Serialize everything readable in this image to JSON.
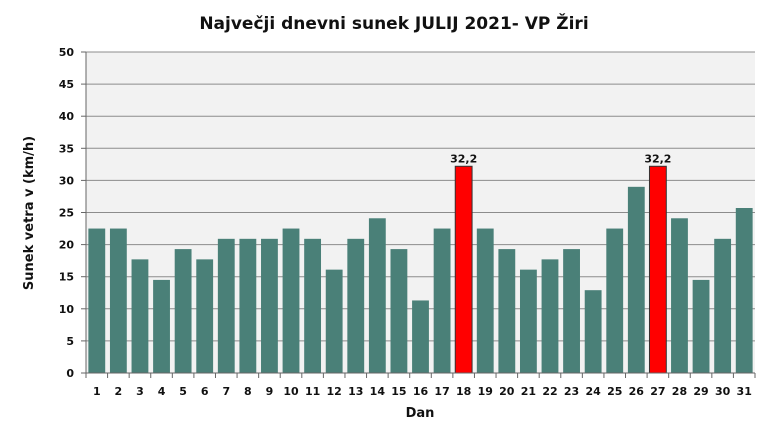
{
  "chart_data": {
    "type": "bar",
    "title": "Največji dnevni sunek JULIJ 2021- VP Žiri",
    "xlabel": "Dan",
    "ylabel": "Sunek vetra  v (km/h)",
    "ylim": [
      0,
      50
    ],
    "yticks": [
      0,
      5,
      10,
      15,
      20,
      25,
      30,
      35,
      40,
      45,
      50
    ],
    "grid": true,
    "categories": [
      "1",
      "2",
      "3",
      "4",
      "5",
      "6",
      "7",
      "8",
      "9",
      "10",
      "11",
      "12",
      "13",
      "14",
      "15",
      "16",
      "17",
      "18",
      "19",
      "20",
      "21",
      "22",
      "23",
      "24",
      "25",
      "26",
      "27",
      "28",
      "29",
      "30",
      "31"
    ],
    "values": [
      22.5,
      22.5,
      17.7,
      14.5,
      19.3,
      17.7,
      20.9,
      20.9,
      20.9,
      22.5,
      20.9,
      16.1,
      20.9,
      24.1,
      19.3,
      11.3,
      22.5,
      32.2,
      22.5,
      19.3,
      16.1,
      17.7,
      19.3,
      12.9,
      22.5,
      29.0,
      32.2,
      24.1,
      14.5,
      20.9,
      25.7
    ],
    "highlighted": [
      {
        "category": "18",
        "label": "32,2"
      },
      {
        "category": "27",
        "label": "32,2"
      }
    ],
    "colors": {
      "bar": "#4a8078",
      "bar_highlight": "#ff0000",
      "plot_background": "#f2f2f2"
    }
  }
}
